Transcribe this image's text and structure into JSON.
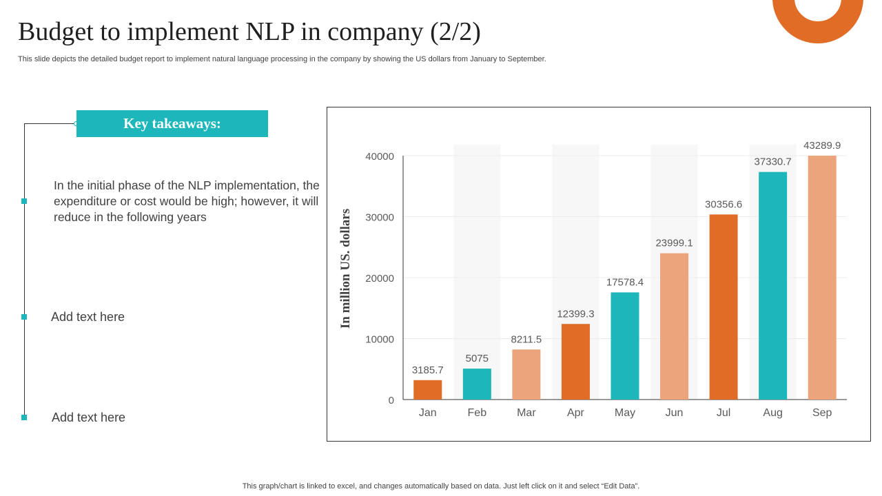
{
  "slide": {
    "title": "Budget to implement NLP in company (2/2)",
    "subtitle": "This slide depicts the detailed budget report to implement natural language processing in the company by showing the US dollars from January to September.",
    "key_takeaways_label": "Key takeaways:",
    "takeaway_text": "In the initial phase of the NLP implementation, the expenditure or cost would be high; however, it will reduce in the following years",
    "add_text_1": "Add text here",
    "add_text_2": "Add text here",
    "footer": "This graph/chart is linked to excel,  and changes automatically based on data. Just left click on it and select “Edit Data”."
  },
  "colors": {
    "accent_teal": "#1db7bb",
    "accent_orange": "#e06c25",
    "accent_peach": "#eca47a"
  },
  "chart_data": {
    "type": "bar",
    "categories": [
      "Jan",
      "Feb",
      "Mar",
      "Apr",
      "May",
      "Jun",
      "Jul",
      "Aug",
      "Sep"
    ],
    "values": [
      3185.7,
      5075,
      8211.5,
      12399.3,
      17578.4,
      23999.1,
      30356.6,
      37330.7,
      43289.9
    ],
    "value_labels": [
      "3185.7",
      "5075",
      "8211.5",
      "12399.3",
      "17578.4",
      "23999.1",
      "30356.6",
      "37330.7",
      "43289.9"
    ],
    "bar_colors": [
      "#e06c25",
      "#1db7bb",
      "#eca47a",
      "#e06c25",
      "#1db7bb",
      "#eca47a",
      "#e06c25",
      "#1db7bb",
      "#eca47a"
    ],
    "title": "",
    "xlabel": "",
    "ylabel": "In million US. dollars",
    "ylim": [
      0,
      40000
    ],
    "yticks": [
      0,
      10000,
      20000,
      30000,
      40000
    ],
    "grid": true,
    "legend": "none"
  }
}
